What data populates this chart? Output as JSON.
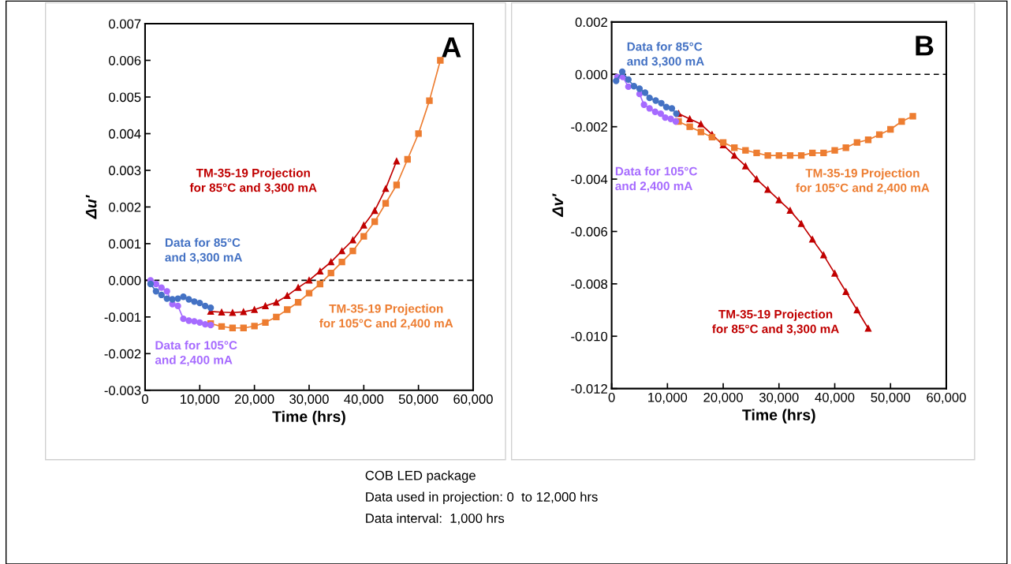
{
  "chart_data": [
    {
      "type": "line",
      "title": "A",
      "xlabel": "Time (hrs)",
      "ylabel": "Δu′",
      "xlim": [
        0,
        60000
      ],
      "ylim": [
        -0.003,
        0.007
      ],
      "xticks": [
        0,
        {
          "value": 10000,
          "label": "10,000"
        },
        {
          "value": 20000,
          "label": "20,000"
        },
        {
          "value": 30000,
          "label": "30,000"
        },
        {
          "value": 40000,
          "label": "40,000"
        },
        {
          "value": 50000,
          "label": "50,000"
        },
        {
          "value": 60000,
          "label": "60,000"
        }
      ],
      "yticks": [
        {
          "value": -0.003,
          "label": "-0.003"
        },
        {
          "value": -0.002,
          "label": "-0.002"
        },
        {
          "value": -0.001,
          "label": "-0.001"
        },
        {
          "value": 0,
          "label": "0.000"
        },
        {
          "value": 0.001,
          "label": "0.001"
        },
        {
          "value": 0.002,
          "label": "0.002"
        },
        {
          "value": 0.003,
          "label": "0.003"
        },
        {
          "value": 0.004,
          "label": "0.004"
        },
        {
          "value": 0.005,
          "label": "0.005"
        },
        {
          "value": 0.006,
          "label": "0.006"
        },
        {
          "value": 0.007,
          "label": "0.007"
        }
      ],
      "grid": false,
      "legend": false,
      "ref_lines": [
        {
          "axis": "y",
          "value": 0,
          "color": "#000000",
          "line_style": "dashed"
        }
      ],
      "series": [
        {
          "name": "TM-35-19 Projection\nfor 85°C and 3,300 mA",
          "color": "#c00000",
          "marker": "triangle",
          "x": [
            12000,
            14000,
            16000,
            18000,
            20000,
            22000,
            24000,
            26000,
            28000,
            30000,
            32000,
            34000,
            36000,
            38000,
            40000,
            42000,
            44000,
            46000
          ],
          "values": [
            -0.00085,
            -0.00087,
            -0.00088,
            -0.00086,
            -0.0008,
            -0.0007,
            -0.0006,
            -0.00042,
            -0.0002,
            0.0,
            0.00025,
            0.0005,
            0.0008,
            0.0011,
            0.0015,
            0.0019,
            0.0025,
            0.00325
          ]
        },
        {
          "name": "TM-35-19 Projection\nfor 105°C and 2,400 mA",
          "color": "#ed7d31",
          "marker": "square",
          "x": [
            12000,
            14000,
            16000,
            18000,
            20000,
            22000,
            24000,
            26000,
            28000,
            30000,
            32000,
            34000,
            36000,
            38000,
            40000,
            42000,
            44000,
            46000,
            48000,
            50000,
            52000,
            54000
          ],
          "values": [
            -0.00118,
            -0.00126,
            -0.0013,
            -0.0013,
            -0.00125,
            -0.00115,
            -0.001,
            -0.0008,
            -0.0006,
            -0.00035,
            -0.0001,
            0.0002,
            0.0005,
            0.0008,
            0.0012,
            0.0016,
            0.0021,
            0.0026,
            0.0033,
            0.004,
            0.0049,
            0.006
          ]
        },
        {
          "name": "Data for 105°C\nand 2,400 mA",
          "color": "#a66bff",
          "marker": "circle",
          "x": [
            1000,
            2000,
            3000,
            4000,
            5000,
            6000,
            7000,
            8000,
            9000,
            10000,
            11000,
            12000
          ],
          "values": [
            0.0,
            -0.0001,
            -0.0002,
            -0.0003,
            -0.00065,
            -0.0007,
            -0.00105,
            -0.0011,
            -0.00112,
            -0.00115,
            -0.0012,
            -0.00122
          ]
        },
        {
          "name": "Data for 85°C\nand 3,300 mA",
          "color": "#4472c4",
          "marker": "circle",
          "x": [
            1000,
            2000,
            3000,
            4000,
            5000,
            6000,
            7000,
            8000,
            9000,
            10000,
            11000,
            12000
          ],
          "values": [
            -0.0001,
            -0.0003,
            -0.0004,
            -0.0005,
            -0.00052,
            -0.0005,
            -0.00045,
            -0.00052,
            -0.00058,
            -0.00062,
            -0.0007,
            -0.00075
          ]
        }
      ],
      "annotations": [
        "COB LED package",
        "Data used in projection: 0  to 12,000 hrs",
        "Data interval:  1,000 hrs"
      ]
    },
    {
      "type": "line",
      "title": "B",
      "xlabel": "Time (hrs)",
      "ylabel": "Δv′",
      "xlim": [
        0,
        60000
      ],
      "ylim": [
        -0.012,
        0.002
      ],
      "xticks": [
        0,
        {
          "value": 10000,
          "label": "10,000"
        },
        {
          "value": 20000,
          "label": "20,000"
        },
        {
          "value": 30000,
          "label": "30,000"
        },
        {
          "value": 40000,
          "label": "40,000"
        },
        {
          "value": 50000,
          "label": "50,000"
        },
        {
          "value": 60000,
          "label": "60,000"
        }
      ],
      "yticks": [
        {
          "value": -0.012,
          "label": "-0.012"
        },
        {
          "value": -0.01,
          "label": "-0.010"
        },
        {
          "value": -0.008,
          "label": "-0.008"
        },
        {
          "value": -0.006,
          "label": "-0.006"
        },
        {
          "value": -0.004,
          "label": "-0.004"
        },
        {
          "value": -0.002,
          "label": "-0.002"
        },
        {
          "value": 0,
          "label": "0.000"
        },
        {
          "value": 0.002,
          "label": "0.002"
        }
      ],
      "grid": false,
      "legend": false,
      "ref_lines": [
        {
          "axis": "y",
          "value": 0,
          "color": "#000000",
          "line_style": "dashed"
        }
      ],
      "series": [
        {
          "name": "TM-35-19 Projection\nfor 85°C and 3,300 mA",
          "color": "#c00000",
          "marker": "triangle",
          "x": [
            12000,
            14000,
            16000,
            18000,
            20000,
            22000,
            24000,
            26000,
            28000,
            30000,
            32000,
            34000,
            36000,
            38000,
            40000,
            42000,
            44000,
            46000
          ],
          "values": [
            -0.0015,
            -0.0017,
            -0.0019,
            -0.0023,
            -0.0027,
            -0.0031,
            -0.0035,
            -0.004,
            -0.0044,
            -0.0048,
            -0.0052,
            -0.0057,
            -0.0063,
            -0.0069,
            -0.0076,
            -0.0083,
            -0.009,
            -0.0097
          ]
        },
        {
          "name": "TM-35-19 Projection\nfor 105°C and 2,400 mA",
          "color": "#ed7d31",
          "marker": "square",
          "x": [
            12000,
            14000,
            16000,
            18000,
            20000,
            22000,
            24000,
            26000,
            28000,
            30000,
            32000,
            34000,
            36000,
            38000,
            40000,
            42000,
            44000,
            46000,
            48000,
            50000,
            52000,
            54000
          ],
          "values": [
            -0.0018,
            -0.002,
            -0.0022,
            -0.0024,
            -0.0026,
            -0.0028,
            -0.0029,
            -0.003,
            -0.0031,
            -0.0031,
            -0.0031,
            -0.0031,
            -0.003,
            -0.003,
            -0.0029,
            -0.0028,
            -0.0026,
            -0.0025,
            -0.0023,
            -0.0021,
            -0.0018,
            -0.0016
          ]
        },
        {
          "name": "Data for 105°C\nand 2,400 mA",
          "color": "#a66bff",
          "marker": "circle",
          "x": [
            1000,
            2000,
            3000,
            3800,
            5000,
            5800,
            6800,
            7800,
            8800,
            9600,
            10600,
            11500
          ],
          "values": [
            -0.0001,
            -0.0001,
            -0.00047,
            null,
            -0.00075,
            -0.00116,
            -0.0013,
            -0.00143,
            -0.0015,
            -0.00165,
            -0.0017,
            -0.0018
          ]
        },
        {
          "name": "Data for 85°C\nand 3,300 mA",
          "color": "#4472c4",
          "marker": "circle",
          "x": [
            800,
            1900,
            3000,
            4000,
            5000,
            6000,
            6800,
            7900,
            8900,
            9800,
            10800,
            11600
          ],
          "values": [
            -0.00025,
            0.0001,
            -0.0002,
            -0.00045,
            -0.00055,
            -0.0007,
            -0.0009,
            -0.001,
            -0.0011,
            -0.00125,
            -0.0013,
            -0.0015
          ]
        }
      ]
    }
  ]
}
